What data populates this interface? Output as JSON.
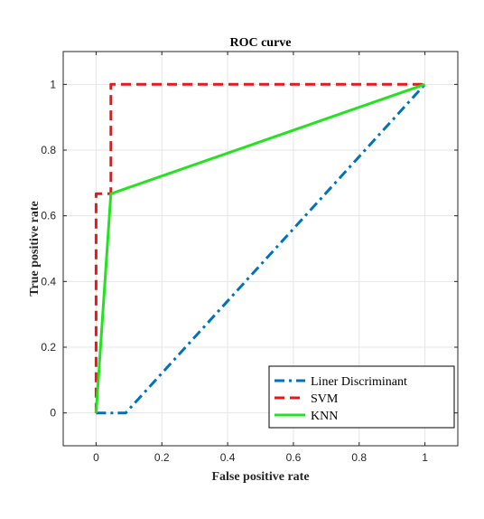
{
  "chart_data": {
    "type": "line",
    "title": "ROC curve",
    "xlabel": "False positive rate",
    "ylabel": "True positive rate",
    "xlim": [
      -0.1,
      1.1
    ],
    "ylim": [
      -0.1,
      1.1
    ],
    "xticks": [
      0,
      0.2,
      0.4,
      0.6,
      0.8,
      1
    ],
    "xtick_labels": [
      "0",
      "0.2",
      "0.4",
      "0.6",
      "0.8",
      "1"
    ],
    "yticks": [
      0,
      0.2,
      0.4,
      0.6,
      0.8,
      1
    ],
    "ytick_labels": [
      "0",
      "0.2",
      "0.4",
      "0.6",
      "0.8",
      "1"
    ],
    "grid": true,
    "legend_position": "bottom-right",
    "series": [
      {
        "name": "Liner Discriminant",
        "color": "#0072BD",
        "style": "dashdot",
        "x": [
          0,
          0.09,
          1
        ],
        "y": [
          0,
          0,
          1
        ]
      },
      {
        "name": "SVM",
        "color": "#E8171A",
        "style": "dashed",
        "x": [
          0,
          0,
          0.045,
          0.045,
          1
        ],
        "y": [
          0,
          0.667,
          0.667,
          1,
          1
        ]
      },
      {
        "name": "KNN",
        "color": "#22E31E",
        "style": "solid",
        "x": [
          0,
          0.045,
          1
        ],
        "y": [
          0,
          0.667,
          1
        ]
      }
    ]
  }
}
